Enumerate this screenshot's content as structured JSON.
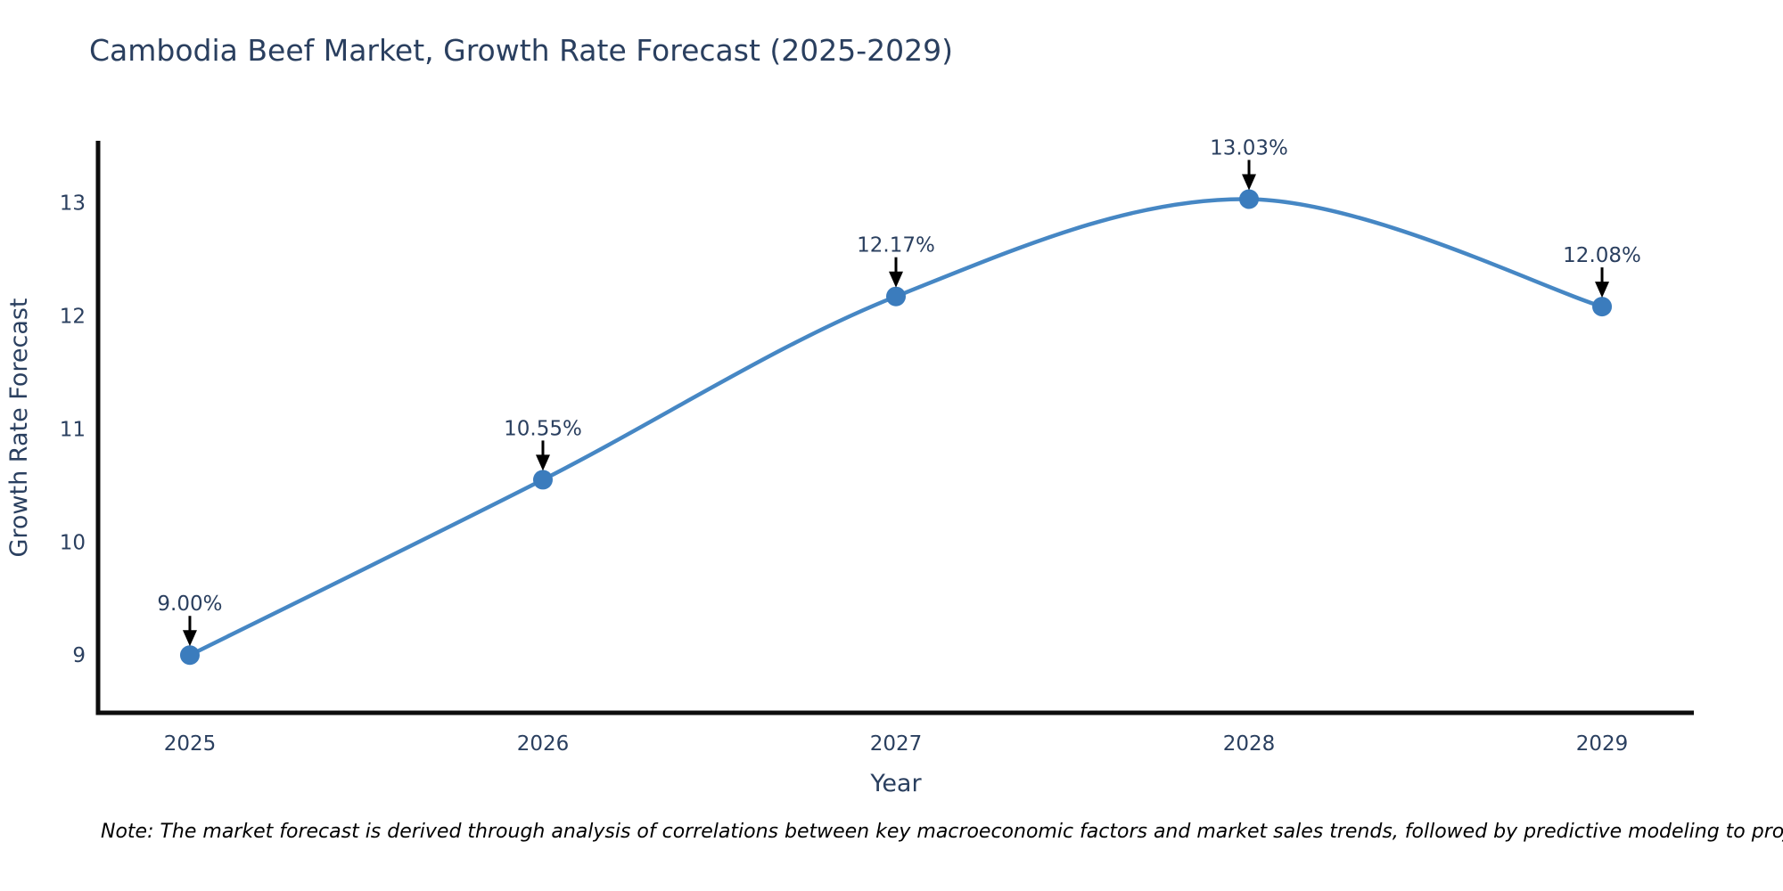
{
  "chart_data": {
    "type": "line",
    "title": "Cambodia Beef Market, Growth Rate Forecast (2025-2029)",
    "xlabel": "Year",
    "ylabel": "Growth Rate Forecast",
    "x": [
      2025,
      2026,
      2027,
      2028,
      2029
    ],
    "series": [
      {
        "name": "Growth Rate Forecast",
        "values": [
          9.0,
          10.55,
          12.17,
          13.03,
          12.08
        ]
      }
    ],
    "point_labels": [
      "9.00%",
      "10.55%",
      "12.17%",
      "13.03%",
      "12.08%"
    ],
    "xtick_labels": [
      "2025",
      "2026",
      "2027",
      "2028",
      "2029"
    ],
    "ytick_values": [
      9,
      10,
      11,
      12,
      13
    ],
    "ytick_labels": [
      "9",
      "10",
      "11",
      "12",
      "13"
    ],
    "xlim": [
      2024.74,
      2029.26
    ],
    "ylim": [
      8.49,
      13.53
    ],
    "grid": false,
    "legend": "none",
    "line_shape": "spline",
    "annotation_style": "label-with-down-arrow",
    "colors": {
      "line": "#4687c4",
      "marker": "#3b7cbd",
      "axis_line": "#0d0d0d",
      "text": "#2a3f5f",
      "annotation_text": "#2a3f5f",
      "arrow": "#000000",
      "note_text": "#000000",
      "background": "#ffffff"
    }
  },
  "note": {
    "text": "Note: The market forecast is derived through analysis of correlations between key macroeconomic factors and market sales trends, followed by predictive modeling to project future sales"
  }
}
